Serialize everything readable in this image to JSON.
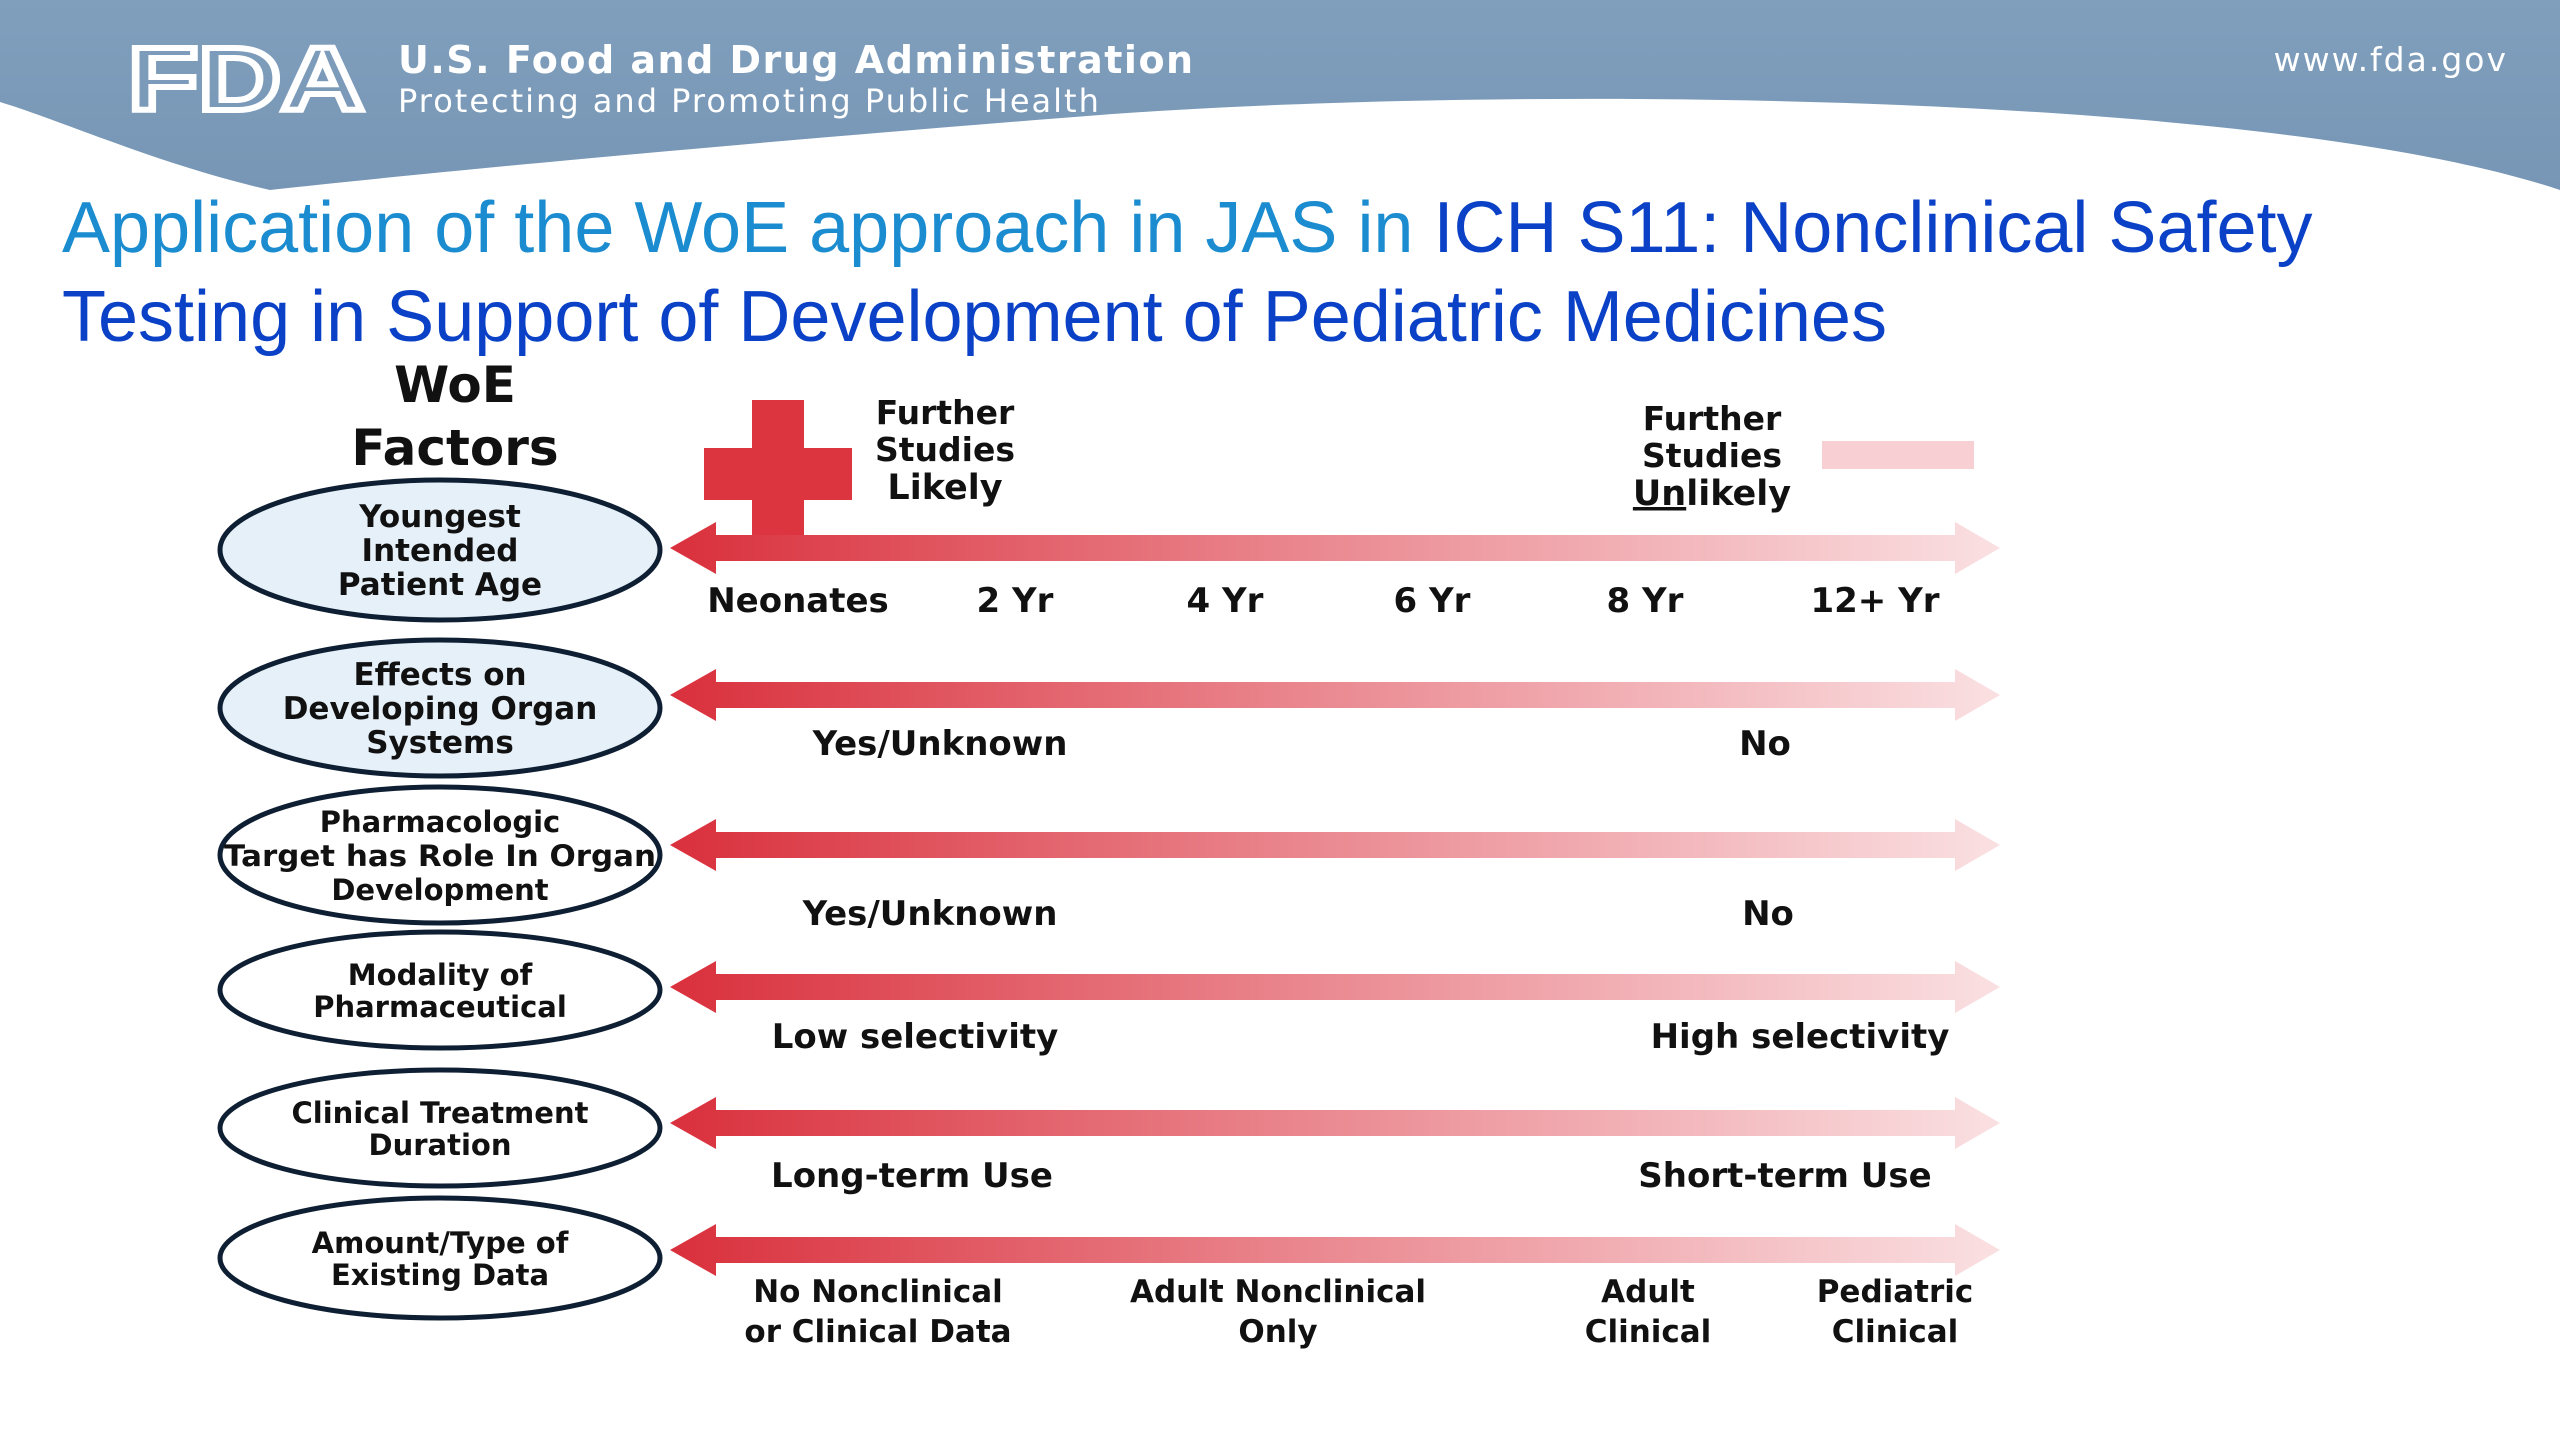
{
  "header": {
    "logo_text": "FDA",
    "agency_name": "U.S. Food and Drug Administration",
    "tagline": "Protecting and Promoting Public Health",
    "url": "www.fda.gov"
  },
  "title": {
    "part1": "Application of the WoE approach in JAS in ",
    "part2": "ICH S11: Nonclinical Safety Testing in Support of Development of Pediatric Medicines"
  },
  "diagram": {
    "heading_line1": "WoE",
    "heading_line2": "Factors",
    "legend": {
      "likely": {
        "line1": "Further",
        "line2": "Studies",
        "line3": "Likely"
      },
      "unlikely": {
        "line1": "Further",
        "line2": "Studies",
        "line3_underlined": "Un",
        "line3_rest": "likely"
      }
    },
    "factors": [
      {
        "lines": [
          "Youngest",
          "Intended",
          "Patient Age"
        ],
        "labels": [
          "Neonates",
          "2 Yr",
          "4 Yr",
          "6 Yr",
          "8 Yr",
          "12+ Yr"
        ]
      },
      {
        "lines": [
          "Effects on",
          "Developing Organ",
          "Systems"
        ],
        "labels": [
          "Yes/Unknown",
          "No"
        ]
      },
      {
        "lines": [
          "Pharmacologic",
          "Target has Role In Organ",
          "Development"
        ],
        "labels": [
          "Yes/Unknown",
          "No"
        ]
      },
      {
        "lines": [
          "Modality of",
          "Pharmaceutical"
        ],
        "labels": [
          "Low selectivity",
          "High selectivity"
        ]
      },
      {
        "lines": [
          "Clinical Treatment",
          "Duration"
        ],
        "labels": [
          "Long-term Use",
          "Short-term Use"
        ]
      },
      {
        "lines": [
          "Amount/Type of",
          "Existing Data"
        ],
        "labels": [
          [
            "No Nonclinical",
            "or Clinical Data"
          ],
          [
            "Adult Nonclinical",
            "Only"
          ],
          [
            "Adult",
            "Clinical"
          ],
          [
            "Pediatric",
            "Clinical"
          ]
        ]
      }
    ]
  },
  "colors": {
    "header_bg": "#7f9fbd",
    "title_light_blue": "#1a8ccf",
    "title_dark_blue": "#0a41c6",
    "arrow_red": "#d9303c",
    "arrow_light": "#f8d8da",
    "oval_fill": "#e6f0f8"
  }
}
